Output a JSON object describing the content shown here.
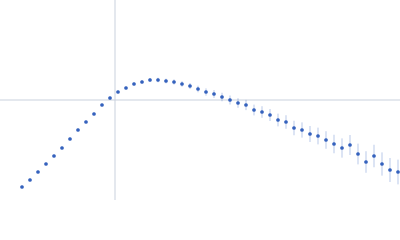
{
  "chart_data": {
    "type": "scatter",
    "xlim": [
      0,
      400
    ],
    "ylim": [
      0,
      200
    ],
    "hline": 100,
    "vline": 115,
    "series": [
      {
        "color": "#3562bd",
        "x": [
          22,
          30,
          38,
          46,
          54,
          62,
          70,
          78,
          86,
          94,
          102,
          110,
          118,
          126,
          134,
          142,
          150,
          158,
          166,
          174,
          182,
          190,
          198,
          206,
          214,
          222,
          230,
          238,
          246,
          254,
          262,
          270,
          278,
          286,
          294,
          302,
          310,
          318,
          326,
          334,
          342,
          350,
          358,
          366,
          374,
          382,
          390,
          398
        ],
        "values": [
          13,
          20,
          28,
          36,
          44,
          52,
          61,
          70,
          78,
          86,
          95,
          102,
          108,
          112,
          116,
          118,
          120,
          120,
          119,
          118,
          116,
          114,
          111,
          108,
          106,
          103,
          100,
          97,
          95,
          90,
          88,
          85,
          80,
          78,
          72,
          70,
          66,
          64,
          60,
          56,
          52,
          55,
          46,
          38,
          44,
          36,
          30,
          28
        ],
        "errors": [
          0.5,
          0.5,
          0.5,
          0.5,
          0.5,
          0.5,
          0.6,
          0.6,
          0.7,
          0.8,
          0.9,
          1,
          1.2,
          1.4,
          1.6,
          1.8,
          2,
          2.2,
          2.4,
          2.6,
          2.8,
          3,
          3.3,
          3.6,
          3.9,
          4.2,
          4.5,
          4.8,
          5.1,
          5.4,
          5.7,
          6,
          6.4,
          6.8,
          7.2,
          7.6,
          8,
          8.4,
          8.8,
          9.2,
          9.6,
          10,
          10.4,
          10.8,
          11.2,
          11.6,
          12,
          12.4
        ]
      }
    ]
  }
}
